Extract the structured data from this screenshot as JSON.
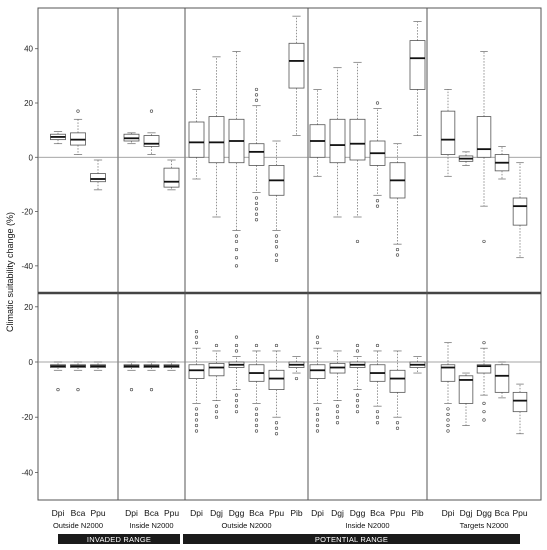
{
  "chart_data": {
    "type": "box",
    "ylabel": "Climatic suitability change (%)",
    "range_labels": [
      "INVADED RANGE",
      "POTENTIAL RANGE"
    ],
    "groups": [
      {
        "name": "Outside N2000",
        "range": "INVADED RANGE",
        "species": [
          "Dpi",
          "Bca",
          "Ppu"
        ]
      },
      {
        "name": "Inside N2000",
        "range": "INVADED RANGE",
        "species": [
          "Dpi",
          "Bca",
          "Ppu"
        ]
      },
      {
        "name": "Outside N2000",
        "range": "POTENTIAL RANGE",
        "species": [
          "Dpi",
          "Dgj",
          "Dgg",
          "Bca",
          "Ppu",
          "Pib"
        ]
      },
      {
        "name": "Inside N2000",
        "range": "POTENTIAL RANGE",
        "species": [
          "Dpi",
          "Dgj",
          "Dgg",
          "Bca",
          "Ppu",
          "Pib"
        ]
      },
      {
        "name": "Targets N2000",
        "range": "POTENTIAL RANGE",
        "species": [
          "Dpi",
          "Dgj",
          "Dgg",
          "Bca",
          "Ppu"
        ]
      }
    ],
    "panels": [
      {
        "name": "top",
        "ylim": [
          -50,
          55
        ],
        "yticks": [
          -40,
          -20,
          0,
          20,
          40
        ],
        "groups": [
          [
            {
              "min": 5,
              "q1": 6.5,
              "median": 7.5,
              "q3": 8.5,
              "max": 9.5,
              "outliers": []
            },
            {
              "min": 1,
              "q1": 4.5,
              "median": 6.5,
              "q3": 9,
              "max": 14,
              "outliers": [
                17
              ]
            },
            {
              "min": -12,
              "q1": -9,
              "median": -8,
              "q3": -6,
              "max": -1,
              "outliers": []
            }
          ],
          [
            {
              "min": 5,
              "q1": 6,
              "median": 7,
              "q3": 8.5,
              "max": 9,
              "outliers": []
            },
            {
              "min": 1,
              "q1": 4,
              "median": 5,
              "q3": 8,
              "max": 9,
              "outliers": [
                17
              ]
            },
            {
              "min": -12,
              "q1": -11,
              "median": -9,
              "q3": -4,
              "max": -1,
              "outliers": []
            }
          ],
          [
            {
              "min": -8,
              "q1": 0,
              "median": 5.5,
              "q3": 13,
              "max": 25,
              "outliers": []
            },
            {
              "min": -22,
              "q1": -2,
              "median": 5.5,
              "q3": 15,
              "max": 37,
              "outliers": []
            },
            {
              "min": -27,
              "q1": -2,
              "median": 6,
              "q3": 14,
              "max": 39,
              "outliers": [
                -29,
                -31,
                -34,
                -37,
                -40
              ]
            },
            {
              "min": -13,
              "q1": -3,
              "median": 2,
              "q3": 5,
              "max": 19,
              "outliers": [
                -15,
                -17,
                -19,
                -21,
                -23,
                21,
                23,
                25
              ]
            },
            {
              "min": -27,
              "q1": -14,
              "median": -8.5,
              "q3": -3,
              "max": 6,
              "outliers": [
                -29,
                -31,
                -33,
                -36,
                -38
              ]
            },
            {
              "min": 8,
              "q1": 25.5,
              "median": 35.5,
              "q3": 42,
              "max": 52,
              "outliers": []
            }
          ],
          [
            {
              "min": -7,
              "q1": 0,
              "median": 6,
              "q3": 12,
              "max": 25,
              "outliers": []
            },
            {
              "min": -22,
              "q1": -2,
              "median": 4.5,
              "q3": 14,
              "max": 33,
              "outliers": []
            },
            {
              "min": -22,
              "q1": -1,
              "median": 5,
              "q3": 14,
              "max": 35,
              "outliers": [
                -31
              ]
            },
            {
              "min": -14,
              "q1": -3,
              "median": 1.5,
              "q3": 6,
              "max": 18,
              "outliers": [
                -16,
                -18,
                20
              ]
            },
            {
              "min": -32,
              "q1": -15,
              "median": -8.5,
              "q3": -2,
              "max": 5,
              "outliers": [
                -34,
                -36
              ]
            },
            {
              "min": 8,
              "q1": 25,
              "median": 36.5,
              "q3": 43,
              "max": 50,
              "outliers": []
            }
          ],
          [
            {
              "min": -7,
              "q1": 1,
              "median": 6.5,
              "q3": 17,
              "max": 25,
              "outliers": []
            },
            {
              "min": -3,
              "q1": -1.5,
              "median": -0.5,
              "q3": 0.5,
              "max": 2,
              "outliers": []
            },
            {
              "min": -18,
              "q1": 0,
              "median": 3,
              "q3": 15,
              "max": 39,
              "outliers": [
                -31
              ]
            },
            {
              "min": -8,
              "q1": -5,
              "median": -2,
              "q3": 1,
              "max": 4,
              "outliers": []
            },
            {
              "min": -37,
              "q1": -25,
              "median": -18,
              "q3": -15,
              "max": -2,
              "outliers": []
            }
          ]
        ]
      },
      {
        "name": "bottom",
        "ylim": [
          -50,
          25
        ],
        "yticks": [
          -40,
          -20,
          0,
          20
        ],
        "groups": [
          [
            {
              "min": -3,
              "q1": -2,
              "median": -1.5,
              "q3": -1,
              "max": 0,
              "outliers": [
                -10
              ]
            },
            {
              "min": -3,
              "q1": -2,
              "median": -1.5,
              "q3": -1,
              "max": 0,
              "outliers": [
                -10
              ]
            },
            {
              "min": -3,
              "q1": -2,
              "median": -1.5,
              "q3": -1,
              "max": 0,
              "outliers": []
            }
          ],
          [
            {
              "min": -3,
              "q1": -2,
              "median": -1.5,
              "q3": -1,
              "max": 0,
              "outliers": [
                -10
              ]
            },
            {
              "min": -3,
              "q1": -2,
              "median": -1.5,
              "q3": -1,
              "max": 0,
              "outliers": [
                -10
              ]
            },
            {
              "min": -3,
              "q1": -2,
              "median": -1.5,
              "q3": -1,
              "max": 0,
              "outliers": []
            }
          ],
          [
            {
              "min": -15,
              "q1": -6,
              "median": -3,
              "q3": -1,
              "max": 5,
              "outliers": [
                -17,
                -19,
                -21,
                -23,
                -25,
                7,
                9,
                11
              ]
            },
            {
              "min": -14,
              "q1": -5,
              "median": -2,
              "q3": -0.5,
              "max": 4,
              "outliers": [
                -16,
                -18,
                -20,
                6
              ]
            },
            {
              "min": -10,
              "q1": -2,
              "median": -1,
              "q3": 0,
              "max": 2,
              "outliers": [
                -12,
                -14,
                -16,
                -18,
                4,
                6,
                9
              ]
            },
            {
              "min": -15,
              "q1": -7,
              "median": -4,
              "q3": -1,
              "max": 4,
              "outliers": [
                -17,
                -19,
                -21,
                -23,
                -25,
                6
              ]
            },
            {
              "min": -20,
              "q1": -10,
              "median": -6,
              "q3": -3,
              "max": 4,
              "outliers": [
                -22,
                -24,
                -26,
                6
              ]
            },
            {
              "min": -4,
              "q1": -2,
              "median": -1,
              "q3": 0,
              "max": 2,
              "outliers": [
                -6
              ]
            }
          ],
          [
            {
              "min": -15,
              "q1": -6,
              "median": -3,
              "q3": -1,
              "max": 5,
              "outliers": [
                -17,
                -19,
                -21,
                -23,
                -25,
                7,
                9
              ]
            },
            {
              "min": -14,
              "q1": -4,
              "median": -2,
              "q3": -0.5,
              "max": 4,
              "outliers": [
                -16,
                -18,
                -20,
                -22
              ]
            },
            {
              "min": -10,
              "q1": -2,
              "median": -1,
              "q3": 0,
              "max": 2,
              "outliers": [
                -12,
                -14,
                -16,
                -18,
                4,
                6
              ]
            },
            {
              "min": -16,
              "q1": -7,
              "median": -4,
              "q3": -1,
              "max": 4,
              "outliers": [
                -18,
                -20,
                -22,
                6
              ]
            },
            {
              "min": -20,
              "q1": -11,
              "median": -6,
              "q3": -3,
              "max": 4,
              "outliers": [
                -22,
                -24
              ]
            },
            {
              "min": -4,
              "q1": -2,
              "median": -1,
              "q3": 0,
              "max": 2,
              "outliers": []
            }
          ],
          [
            {
              "min": -15,
              "q1": -7,
              "median": -2,
              "q3": -1,
              "max": 7,
              "outliers": [
                -17,
                -19,
                -21,
                -23,
                -25
              ]
            },
            {
              "min": -23,
              "q1": -15,
              "median": -6.5,
              "q3": -5,
              "max": -4,
              "outliers": []
            },
            {
              "min": -12,
              "q1": -4,
              "median": -1.5,
              "q3": -1,
              "max": 5,
              "outliers": [
                -15,
                -18,
                -21,
                7
              ]
            },
            {
              "min": -13,
              "q1": -11,
              "median": -5,
              "q3": -1,
              "max": 0,
              "outliers": []
            },
            {
              "min": -26,
              "q1": -18,
              "median": -14,
              "q3": -11,
              "max": -8,
              "outliers": []
            }
          ]
        ]
      }
    ]
  }
}
